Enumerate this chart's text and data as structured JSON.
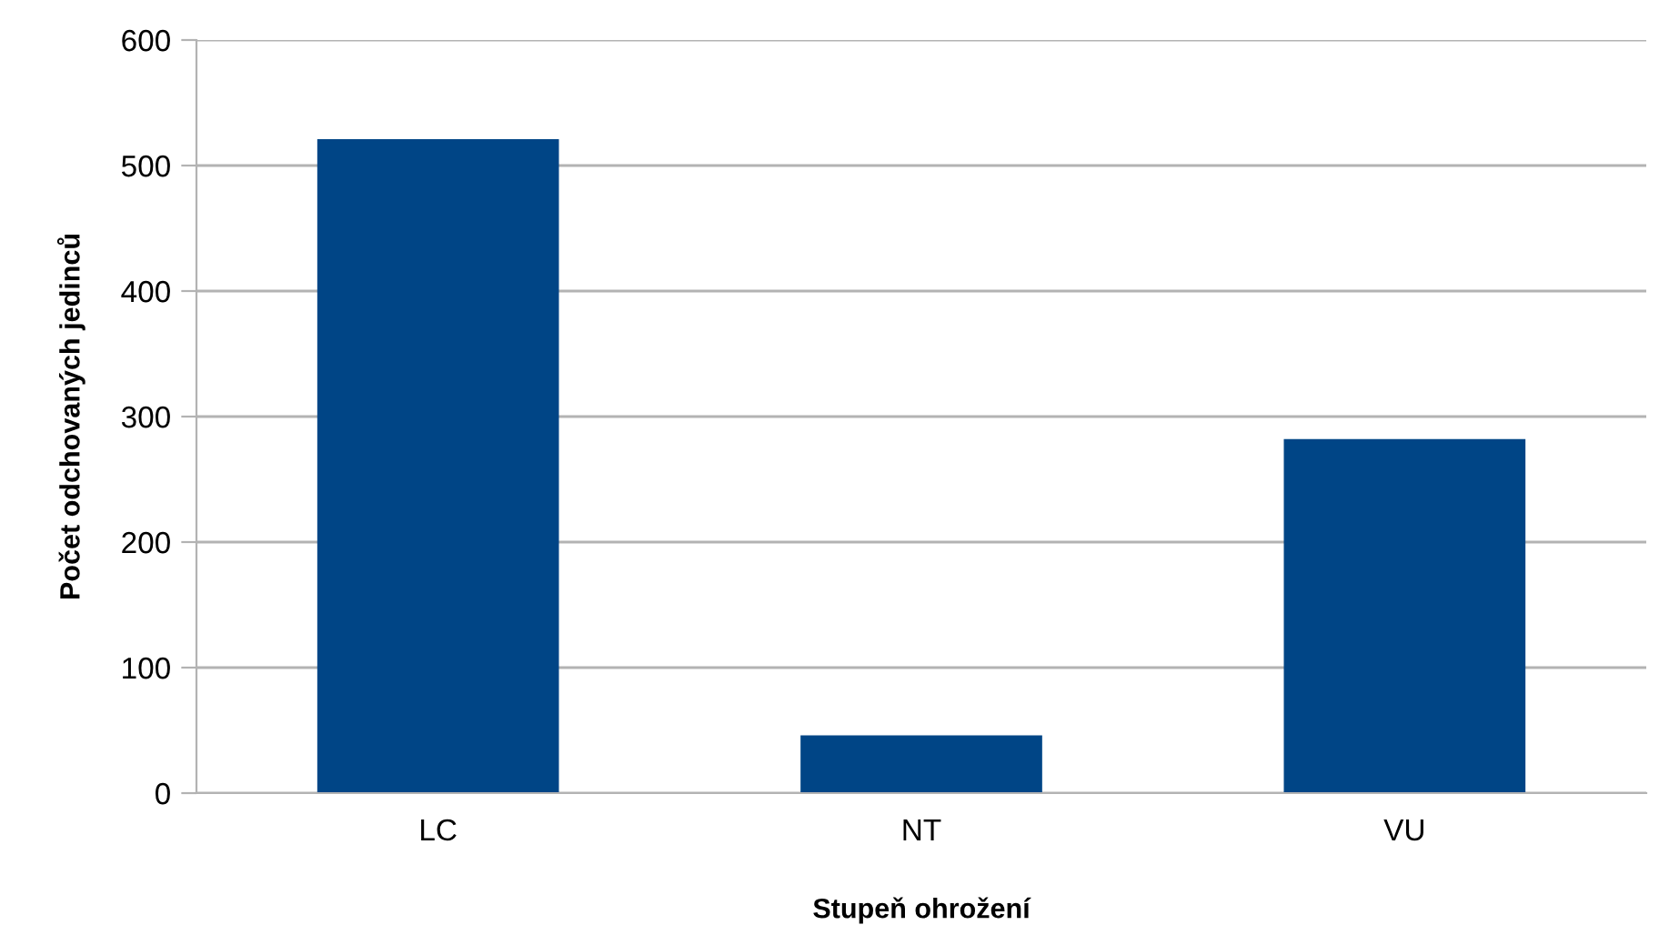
{
  "chart_data": {
    "type": "bar",
    "xlabel": "Stupeň ohrožení",
    "ylabel": "Počet odchovaných jedinců",
    "categories": [
      "LC",
      "NT",
      "VU"
    ],
    "values": [
      521,
      46,
      282
    ],
    "color": "#004586",
    "ylim": [
      0,
      600
    ],
    "yticks": [
      0,
      100,
      200,
      300,
      400,
      500,
      600
    ],
    "grid": "y",
    "legend": false
  }
}
